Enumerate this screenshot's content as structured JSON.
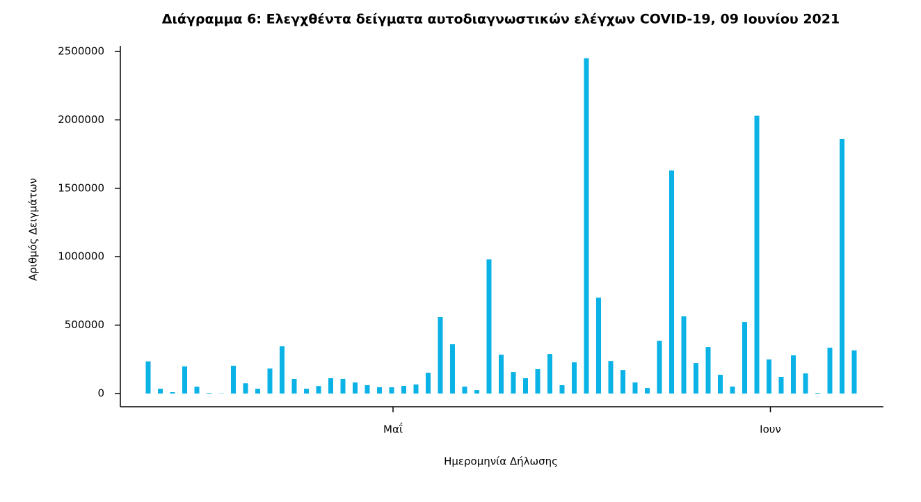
{
  "chart_data": {
    "type": "bar",
    "title": "Διάγραμμα 6: Ελεγχθέντα δείγματα αυτοδιαγνωστικών ελέγχων COVID-19, 09 Ιουνίου 2021",
    "x_label": "Ημερομηνία Δήλωσης",
    "y_label": "Αριθμός Δειγμάτων",
    "categories": [
      null,
      null,
      null,
      null,
      null,
      null,
      null,
      null,
      null,
      null,
      null,
      null,
      null,
      null,
      null,
      null,
      null,
      null,
      null,
      null,
      "Μαΐ",
      null,
      null,
      null,
      null,
      null,
      null,
      null,
      null,
      null,
      null,
      null,
      null,
      null,
      null,
      null,
      null,
      null,
      null,
      null,
      null,
      null,
      null,
      null,
      null,
      null,
      null,
      null,
      null,
      null,
      null,
      "Ιουν",
      null,
      null,
      null,
      null,
      null,
      null,
      null
    ],
    "values": [
      235000,
      35000,
      10000,
      198000,
      50000,
      5000,
      2000,
      203000,
      75000,
      35000,
      183000,
      345000,
      107000,
      35000,
      55000,
      112000,
      107000,
      81000,
      61000,
      46000,
      46000,
      56000,
      66000,
      152000,
      559000,
      360000,
      51000,
      25000,
      980000,
      284000,
      157000,
      112000,
      178000,
      289000,
      61000,
      228000,
      2450000,
      701000,
      238000,
      172000,
      81000,
      40000,
      386000,
      1630000,
      564000,
      223000,
      340000,
      137000,
      51000,
      523000,
      2030000,
      249000,
      122000,
      279000,
      147000,
      5000,
      335000,
      1860000,
      315000
    ],
    "color": "#0ab2e6",
    "ylim": [
      0,
      2500000
    ],
    "yticks": [
      0,
      500000,
      1000000,
      1500000,
      2000000,
      2500000
    ],
    "grid": false
  }
}
